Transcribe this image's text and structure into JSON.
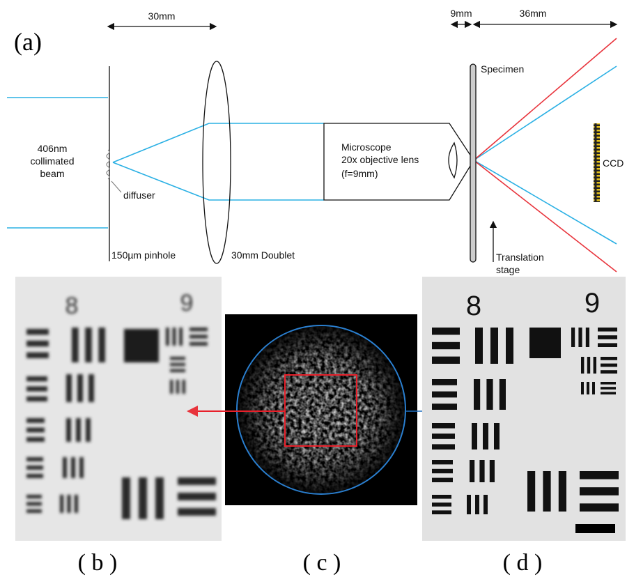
{
  "panel_a": {
    "label": "(a)",
    "dimensions": [
      "30mm",
      "9mm",
      "36mm"
    ],
    "labels": {
      "source": [
        "406nm",
        "collimated",
        "beam"
      ],
      "diffuser": "diffuser",
      "pinhole": "150µm pinhole",
      "doublet": "30mm Doublet",
      "objective": [
        "Microscope",
        "20x objective lens",
        "(f=9mm)"
      ],
      "specimen": "Specimen",
      "ccd": "CCD",
      "stage": [
        "Translation",
        "stage"
      ]
    }
  },
  "panel_b": {
    "group_labels": [
      "8",
      "9"
    ],
    "caption": "( b )"
  },
  "panel_c": {
    "caption": "( c )"
  },
  "panel_d": {
    "group_labels": [
      "8",
      "9"
    ],
    "caption": "( d )"
  }
}
